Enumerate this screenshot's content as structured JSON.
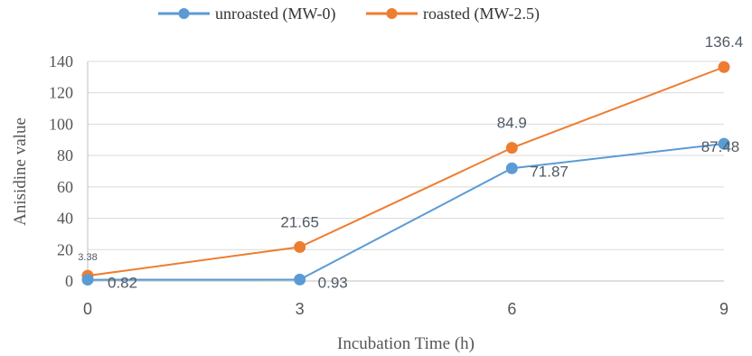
{
  "chart_data": {
    "type": "line",
    "title": "",
    "xlabel": "Incubation Time (h)",
    "ylabel": "Anisidine value",
    "x": [
      0,
      3,
      6,
      9
    ],
    "x_tick_labels": [
      "0",
      "3",
      "6",
      "9"
    ],
    "y_tick_labels": [
      "0",
      "20",
      "40",
      "60",
      "80",
      "100",
      "120",
      "140"
    ],
    "ylim": [
      0,
      140
    ],
    "grid": "horizontal",
    "legend_position": "top",
    "series": [
      {
        "name": "unroasted (MW-0)",
        "color": "#5b9bd5",
        "values": [
          0.82,
          0.93,
          71.87,
          87.48
        ],
        "labels": [
          "0.82",
          "0.93",
          "71.87",
          "87.48"
        ]
      },
      {
        "name": "roasted (MW-2.5)",
        "color": "#ed7d31",
        "values": [
          3.38,
          21.65,
          84.9,
          136.4
        ],
        "labels": [
          "3.38",
          "21.65",
          "84.9",
          "136.4"
        ]
      }
    ]
  }
}
